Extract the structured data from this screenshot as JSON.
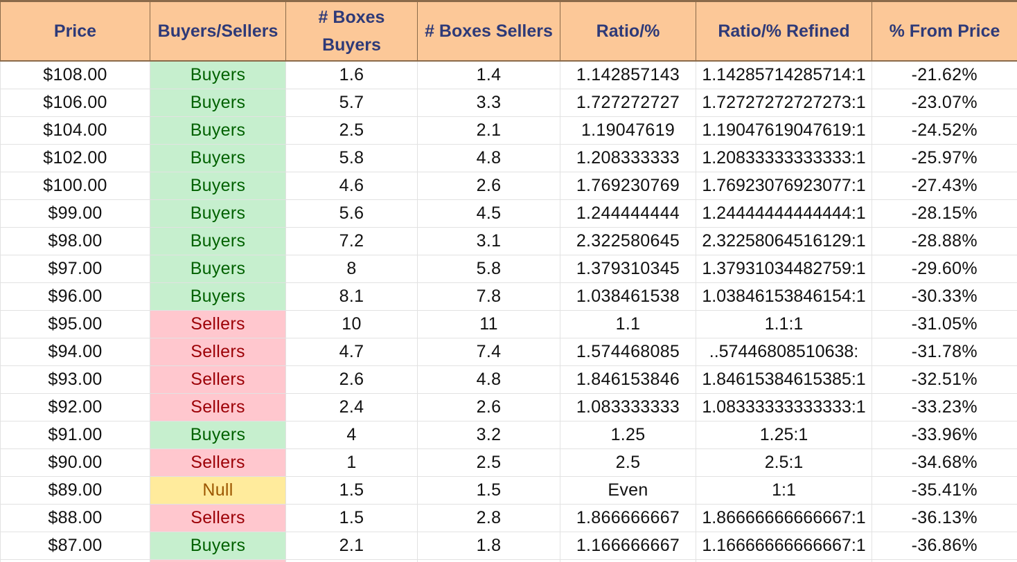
{
  "headers": [
    "Price",
    "Buyers/Sellers",
    "# Boxes Buyers",
    "# Boxes Sellers",
    "Ratio/%",
    "Ratio/% Refined",
    "% From Price"
  ],
  "rows": [
    {
      "price": "$108.00",
      "side": "Buyers",
      "buyers": "1.6",
      "sellers": "1.4",
      "ratio": "1.142857143",
      "refined": "1.14285714285714:1",
      "from": "-21.62%"
    },
    {
      "price": "$106.00",
      "side": "Buyers",
      "buyers": "5.7",
      "sellers": "3.3",
      "ratio": "1.727272727",
      "refined": "1.72727272727273:1",
      "from": "-23.07%"
    },
    {
      "price": "$104.00",
      "side": "Buyers",
      "buyers": "2.5",
      "sellers": "2.1",
      "ratio": "1.19047619",
      "refined": "1.19047619047619:1",
      "from": "-24.52%"
    },
    {
      "price": "$102.00",
      "side": "Buyers",
      "buyers": "5.8",
      "sellers": "4.8",
      "ratio": "1.208333333",
      "refined": "1.20833333333333:1",
      "from": "-25.97%"
    },
    {
      "price": "$100.00",
      "side": "Buyers",
      "buyers": "4.6",
      "sellers": "2.6",
      "ratio": "1.769230769",
      "refined": "1.76923076923077:1",
      "from": "-27.43%"
    },
    {
      "price": "$99.00",
      "side": "Buyers",
      "buyers": "5.6",
      "sellers": "4.5",
      "ratio": "1.244444444",
      "refined": "1.24444444444444:1",
      "from": "-28.15%"
    },
    {
      "price": "$98.00",
      "side": "Buyers",
      "buyers": "7.2",
      "sellers": "3.1",
      "ratio": "2.322580645",
      "refined": "2.32258064516129:1",
      "from": "-28.88%"
    },
    {
      "price": "$97.00",
      "side": "Buyers",
      "buyers": "8",
      "sellers": "5.8",
      "ratio": "1.379310345",
      "refined": "1.37931034482759:1",
      "from": "-29.60%"
    },
    {
      "price": "$96.00",
      "side": "Buyers",
      "buyers": "8.1",
      "sellers": "7.8",
      "ratio": "1.038461538",
      "refined": "1.03846153846154:1",
      "from": "-30.33%"
    },
    {
      "price": "$95.00",
      "side": "Sellers",
      "buyers": "10",
      "sellers": "11",
      "ratio": "1.1",
      "refined": "1.1:1",
      "from": "-31.05%"
    },
    {
      "price": "$94.00",
      "side": "Sellers",
      "buyers": "4.7",
      "sellers": "7.4",
      "ratio": "1.574468085",
      "refined": "..57446808510638:",
      "from": "-31.78%"
    },
    {
      "price": "$93.00",
      "side": "Sellers",
      "buyers": "2.6",
      "sellers": "4.8",
      "ratio": "1.846153846",
      "refined": "1.84615384615385:1",
      "from": "-32.51%"
    },
    {
      "price": "$92.00",
      "side": "Sellers",
      "buyers": "2.4",
      "sellers": "2.6",
      "ratio": "1.083333333",
      "refined": "1.08333333333333:1",
      "from": "-33.23%"
    },
    {
      "price": "$91.00",
      "side": "Buyers",
      "buyers": "4",
      "sellers": "3.2",
      "ratio": "1.25",
      "refined": "1.25:1",
      "from": "-33.96%"
    },
    {
      "price": "$90.00",
      "side": "Sellers",
      "buyers": "1",
      "sellers": "2.5",
      "ratio": "2.5",
      "refined": "2.5:1",
      "from": "-34.68%"
    },
    {
      "price": "$89.00",
      "side": "Null",
      "buyers": "1.5",
      "sellers": "1.5",
      "ratio": "Even",
      "refined": "1:1",
      "from": "-35.41%"
    },
    {
      "price": "$88.00",
      "side": "Sellers",
      "buyers": "1.5",
      "sellers": "2.8",
      "ratio": "1.866666667",
      "refined": "1.86666666666667:1",
      "from": "-36.13%"
    },
    {
      "price": "$87.00",
      "side": "Buyers",
      "buyers": "2.1",
      "sellers": "1.8",
      "ratio": "1.166666667",
      "refined": "1.16666666666667:1",
      "from": "-36.86%"
    }
  ],
  "colors": {
    "header_bg": "#fcc898",
    "header_text": "#2e3a78",
    "buyers_bg": "#c6efce",
    "buyers_text": "#006100",
    "sellers_bg": "#ffc7ce",
    "sellers_text": "#9c0006",
    "null_bg": "#ffeb9c",
    "null_text": "#9c5700"
  }
}
